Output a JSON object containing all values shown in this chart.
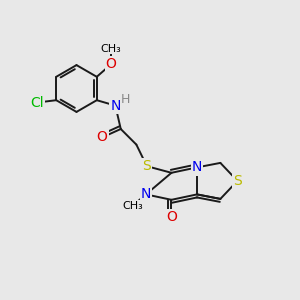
{
  "bg_color": "#e8e8e8",
  "bond_color": "#1a1a1a",
  "atoms": {
    "Cl": {
      "color": "#00bb00",
      "fontsize": 10
    },
    "O": {
      "color": "#dd0000",
      "fontsize": 10
    },
    "N": {
      "color": "#0000ee",
      "fontsize": 10
    },
    "S": {
      "color": "#bbbb00",
      "fontsize": 10
    },
    "H": {
      "color": "#888888",
      "fontsize": 9
    }
  },
  "figsize": [
    3.0,
    3.0
  ],
  "dpi": 100,
  "lw": 1.4,
  "dbl": 0.1
}
